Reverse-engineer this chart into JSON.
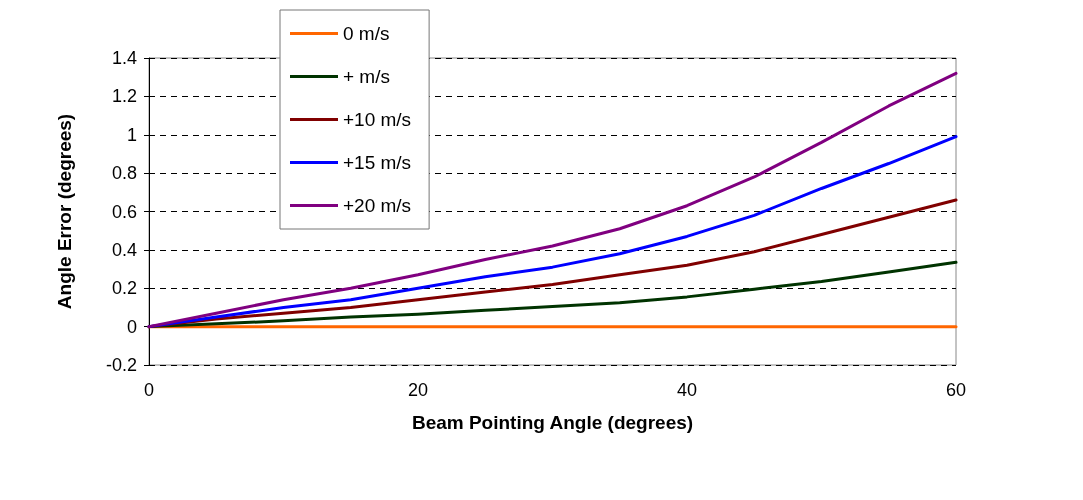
{
  "chart_data": {
    "type": "line",
    "xlabel": "Beam Pointing Angle (degrees)",
    "ylabel": "Angle Error (degrees)",
    "x": [
      0,
      5,
      10,
      15,
      20,
      25,
      30,
      35,
      40,
      45,
      50,
      55,
      60
    ],
    "series": [
      {
        "name": "0 m/s",
        "color": "#ff6600",
        "values": [
          0,
          0,
          0,
          0,
          0,
          0,
          0,
          0,
          0,
          0,
          0,
          0,
          0
        ]
      },
      {
        "name": "+ m/s",
        "color": "#003300",
        "values": [
          0,
          0.015,
          0.03,
          0.05,
          0.065,
          0.085,
          0.105,
          0.125,
          0.155,
          0.195,
          0.235,
          0.285,
          0.335
        ]
      },
      {
        "name": "+10 m/s",
        "color": "#800000",
        "values": [
          0,
          0.04,
          0.07,
          0.1,
          0.14,
          0.18,
          0.22,
          0.27,
          0.32,
          0.39,
          0.48,
          0.57,
          0.66
        ]
      },
      {
        "name": "+15 m/s",
        "color": "#0000ff",
        "values": [
          0,
          0.05,
          0.1,
          0.14,
          0.2,
          0.26,
          0.31,
          0.38,
          0.47,
          0.58,
          0.72,
          0.85,
          0.99
        ]
      },
      {
        "name": "+20 m/s",
        "color": "#800080",
        "values": [
          0,
          0.07,
          0.14,
          0.2,
          0.27,
          0.35,
          0.42,
          0.51,
          0.63,
          0.78,
          0.96,
          1.15,
          1.32
        ]
      }
    ],
    "xlim": [
      0,
      60
    ],
    "xticks": [
      0,
      20,
      40,
      60
    ],
    "ylim": [
      -0.2,
      1.4
    ],
    "yticks": [
      -0.2,
      0,
      0.2,
      0.4,
      0.6,
      0.8,
      1,
      1.2,
      1.4
    ],
    "grid": "y",
    "legend": "top left",
    "marker": "none",
    "line_style": "solid"
  }
}
